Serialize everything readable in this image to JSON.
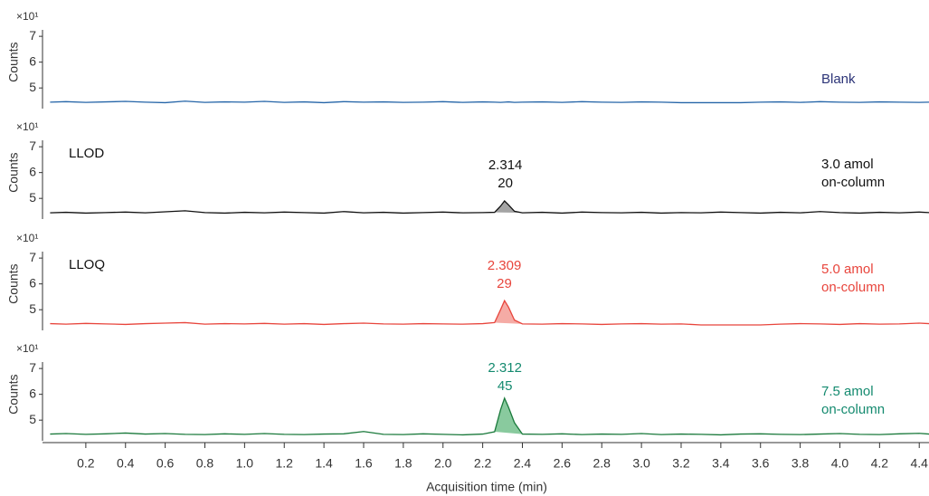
{
  "chart_data": [
    {
      "type": "line",
      "y_label": "Counts",
      "y_multiplier": "×10¹",
      "sample_label": [
        "Blank"
      ],
      "label_color": "#2d3578",
      "xlim": [
        0,
        4.44
      ],
      "ylim": [
        4.2,
        7.25
      ],
      "yticks": [
        5,
        6,
        7
      ],
      "x": [
        0.02,
        0.1,
        0.2,
        0.3,
        0.4,
        0.5,
        0.6,
        0.7,
        0.8,
        0.9,
        1.0,
        1.1,
        1.2,
        1.3,
        1.4,
        1.5,
        1.6,
        1.7,
        1.8,
        1.9,
        2.0,
        2.1,
        2.2,
        2.26,
        2.29,
        2.31,
        2.33,
        2.36,
        2.4,
        2.5,
        2.6,
        2.7,
        2.8,
        2.9,
        3.0,
        3.1,
        3.2,
        3.3,
        3.4,
        3.5,
        3.6,
        3.7,
        3.8,
        3.9,
        4.0,
        4.1,
        4.2,
        4.3,
        4.4,
        4.45
      ],
      "series": [
        {
          "color": "#2565a8",
          "values": [
            4.45,
            4.47,
            4.44,
            4.46,
            4.48,
            4.45,
            4.43,
            4.49,
            4.44,
            4.46,
            4.45,
            4.48,
            4.44,
            4.46,
            4.43,
            4.47,
            4.45,
            4.46,
            4.44,
            4.45,
            4.47,
            4.44,
            4.46,
            4.45,
            4.44,
            4.45,
            4.46,
            4.44,
            4.45,
            4.46,
            4.44,
            4.47,
            4.45,
            4.44,
            4.46,
            4.45,
            4.43,
            4.43,
            4.43,
            4.43,
            4.45,
            4.46,
            4.44,
            4.47,
            4.45,
            4.44,
            4.46,
            4.45,
            4.44,
            4.45
          ]
        }
      ]
    },
    {
      "type": "line",
      "y_label": "Counts",
      "y_multiplier": "×10¹",
      "level": "LLOD",
      "sample_label": [
        "3.0 amol",
        "on-column"
      ],
      "label_color": "#111111",
      "peak": {
        "rt": 2.314,
        "sn": 20
      },
      "fill": "#9a9a9a",
      "xlim": [
        0,
        4.44
      ],
      "ylim": [
        4.2,
        7.25
      ],
      "yticks": [
        5,
        6,
        7
      ],
      "x": [
        0.02,
        0.1,
        0.2,
        0.3,
        0.4,
        0.5,
        0.6,
        0.7,
        0.8,
        0.9,
        1.0,
        1.1,
        1.2,
        1.3,
        1.4,
        1.5,
        1.6,
        1.7,
        1.8,
        1.9,
        2.0,
        2.1,
        2.2,
        2.26,
        2.29,
        2.31,
        2.33,
        2.36,
        2.4,
        2.5,
        2.6,
        2.7,
        2.8,
        2.9,
        3.0,
        3.1,
        3.2,
        3.3,
        3.4,
        3.5,
        3.6,
        3.7,
        3.8,
        3.9,
        4.0,
        4.1,
        4.2,
        4.3,
        4.4,
        4.45
      ],
      "series": [
        {
          "color": "#111111",
          "values": [
            4.44,
            4.46,
            4.43,
            4.45,
            4.47,
            4.44,
            4.48,
            4.52,
            4.45,
            4.43,
            4.46,
            4.44,
            4.47,
            4.45,
            4.43,
            4.49,
            4.44,
            4.46,
            4.43,
            4.45,
            4.47,
            4.44,
            4.45,
            4.46,
            4.7,
            4.9,
            4.75,
            4.5,
            4.44,
            4.46,
            4.43,
            4.47,
            4.45,
            4.44,
            4.46,
            4.43,
            4.45,
            4.44,
            4.47,
            4.45,
            4.43,
            4.46,
            4.44,
            4.49,
            4.45,
            4.43,
            4.46,
            4.44,
            4.47,
            4.45
          ]
        }
      ]
    },
    {
      "type": "line",
      "y_label": "Counts",
      "y_multiplier": "×10¹",
      "level": "LLOQ",
      "sample_label": [
        "5.0 amol",
        "on-column"
      ],
      "label_color": "#e8453c",
      "peak": {
        "rt": 2.309,
        "sn": 29
      },
      "fill": "#f4a29b",
      "xlim": [
        0,
        4.44
      ],
      "ylim": [
        4.2,
        7.25
      ],
      "yticks": [
        5,
        6,
        7
      ],
      "x": [
        0.02,
        0.1,
        0.2,
        0.3,
        0.4,
        0.5,
        0.6,
        0.7,
        0.8,
        0.9,
        1.0,
        1.1,
        1.2,
        1.3,
        1.4,
        1.5,
        1.6,
        1.7,
        1.8,
        1.9,
        2.0,
        2.1,
        2.2,
        2.26,
        2.29,
        2.31,
        2.33,
        2.36,
        2.4,
        2.5,
        2.6,
        2.7,
        2.8,
        2.9,
        3.0,
        3.1,
        3.2,
        3.3,
        3.4,
        3.5,
        3.6,
        3.7,
        3.8,
        3.9,
        4.0,
        4.1,
        4.2,
        4.3,
        4.4,
        4.45
      ],
      "series": [
        {
          "color": "#e8453c",
          "values": [
            4.46,
            4.44,
            4.47,
            4.45,
            4.43,
            4.46,
            4.48,
            4.5,
            4.44,
            4.46,
            4.45,
            4.47,
            4.44,
            4.46,
            4.43,
            4.46,
            4.48,
            4.45,
            4.44,
            4.46,
            4.45,
            4.44,
            4.46,
            4.5,
            5.0,
            5.35,
            5.1,
            4.6,
            4.45,
            4.44,
            4.46,
            4.45,
            4.43,
            4.45,
            4.46,
            4.44,
            4.45,
            4.41,
            4.41,
            4.41,
            4.41,
            4.44,
            4.46,
            4.45,
            4.43,
            4.46,
            4.44,
            4.45,
            4.48,
            4.46
          ]
        }
      ]
    },
    {
      "type": "line",
      "y_label": "Counts",
      "y_multiplier": "×10¹",
      "sample_label": [
        "7.5 amol",
        "on-column"
      ],
      "label_color": "#148a6f",
      "peak": {
        "rt": 2.312,
        "sn": 45
      },
      "fill": "#7cc493",
      "x_label": "Acquisition time (min)",
      "xlim": [
        0,
        4.44
      ],
      "ylim": [
        4.2,
        7.25
      ],
      "yticks": [
        5,
        6,
        7
      ],
      "xticks": [
        0.2,
        0.4,
        0.6,
        0.8,
        {
          "value": 1,
          "label": "1.0"
        },
        1.2,
        1.4,
        1.6,
        1.8,
        {
          "value": 2,
          "label": "2.0"
        },
        2.2,
        2.4,
        2.6,
        2.8,
        {
          "value": 3,
          "label": "3.0"
        },
        3.2,
        3.4,
        3.6,
        3.8,
        {
          "value": 4,
          "label": "4.0"
        },
        4.2,
        4.4
      ],
      "x": [
        0.02,
        0.1,
        0.2,
        0.3,
        0.4,
        0.5,
        0.6,
        0.7,
        0.8,
        0.9,
        1.0,
        1.1,
        1.2,
        1.3,
        1.4,
        1.5,
        1.6,
        1.7,
        1.8,
        1.9,
        2.0,
        2.1,
        2.2,
        2.26,
        2.29,
        2.31,
        2.33,
        2.36,
        2.4,
        2.5,
        2.6,
        2.7,
        2.8,
        2.9,
        3.0,
        3.1,
        3.2,
        3.3,
        3.4,
        3.5,
        3.6,
        3.7,
        3.8,
        3.9,
        4.0,
        4.1,
        4.2,
        4.3,
        4.4,
        4.45
      ],
      "series": [
        {
          "color": "#1b7a3c",
          "values": [
            4.46,
            4.48,
            4.45,
            4.47,
            4.5,
            4.46,
            4.48,
            4.45,
            4.44,
            4.47,
            4.45,
            4.48,
            4.45,
            4.44,
            4.46,
            4.47,
            4.56,
            4.45,
            4.44,
            4.47,
            4.45,
            4.43,
            4.46,
            4.55,
            5.4,
            5.85,
            5.5,
            4.9,
            4.46,
            4.45,
            4.47,
            4.44,
            4.46,
            4.45,
            4.48,
            4.44,
            4.46,
            4.45,
            4.43,
            4.46,
            4.47,
            4.45,
            4.44,
            4.46,
            4.48,
            4.45,
            4.44,
            4.47,
            4.49,
            4.46
          ]
        }
      ]
    }
  ]
}
